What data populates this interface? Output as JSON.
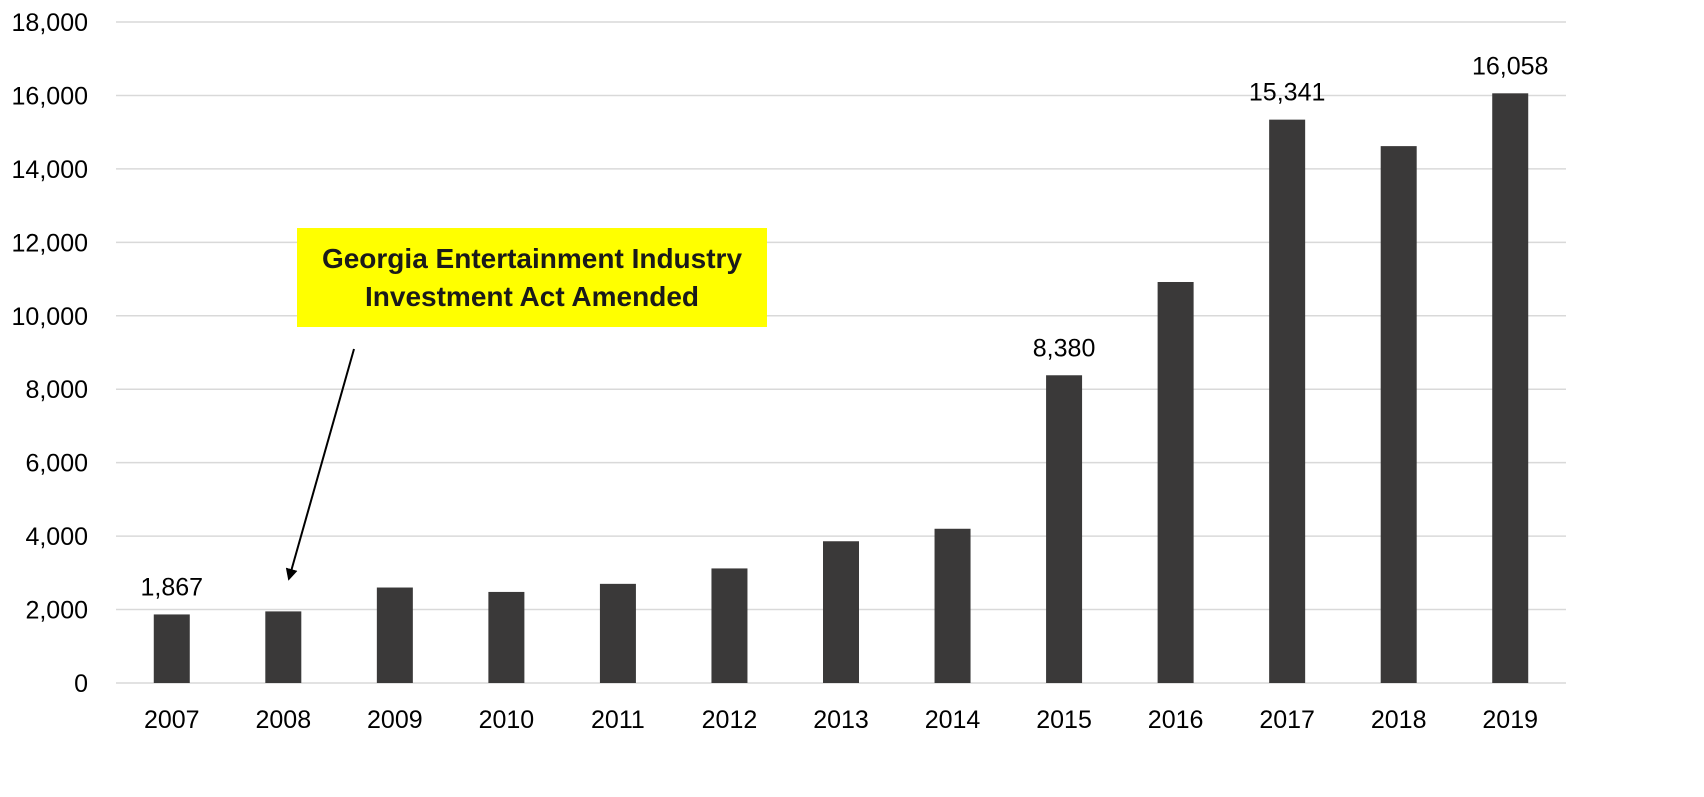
{
  "chart_data": {
    "type": "bar",
    "categories": [
      "2007",
      "2008",
      "2009",
      "2010",
      "2011",
      "2012",
      "2013",
      "2014",
      "2015",
      "2016",
      "2017",
      "2018",
      "2019"
    ],
    "values": [
      1867,
      1950,
      2600,
      2480,
      2700,
      3120,
      3860,
      4200,
      8380,
      10920,
      15341,
      14620,
      16058
    ],
    "data_labels": [
      {
        "category": "2007",
        "text": "1,867"
      },
      {
        "category": "2015",
        "text": "8,380"
      },
      {
        "category": "2017",
        "text": "15,341"
      },
      {
        "category": "2019",
        "text": "16,058"
      }
    ],
    "ylim": [
      0,
      18000
    ],
    "yticks": [
      0,
      2000,
      4000,
      6000,
      8000,
      10000,
      12000,
      14000,
      16000,
      18000
    ],
    "ytick_labels": [
      "0",
      "2,000",
      "4,000",
      "6,000",
      "8,000",
      "10,000",
      "12,000",
      "14,000",
      "16,000",
      "18,000"
    ],
    "grid": true,
    "bar_color": "#3a3939",
    "annotation": {
      "line1": "Georgia Entertainment Industry",
      "line2": "Investment Act Amended",
      "background": "#ffff00",
      "points_to": "2008"
    }
  }
}
